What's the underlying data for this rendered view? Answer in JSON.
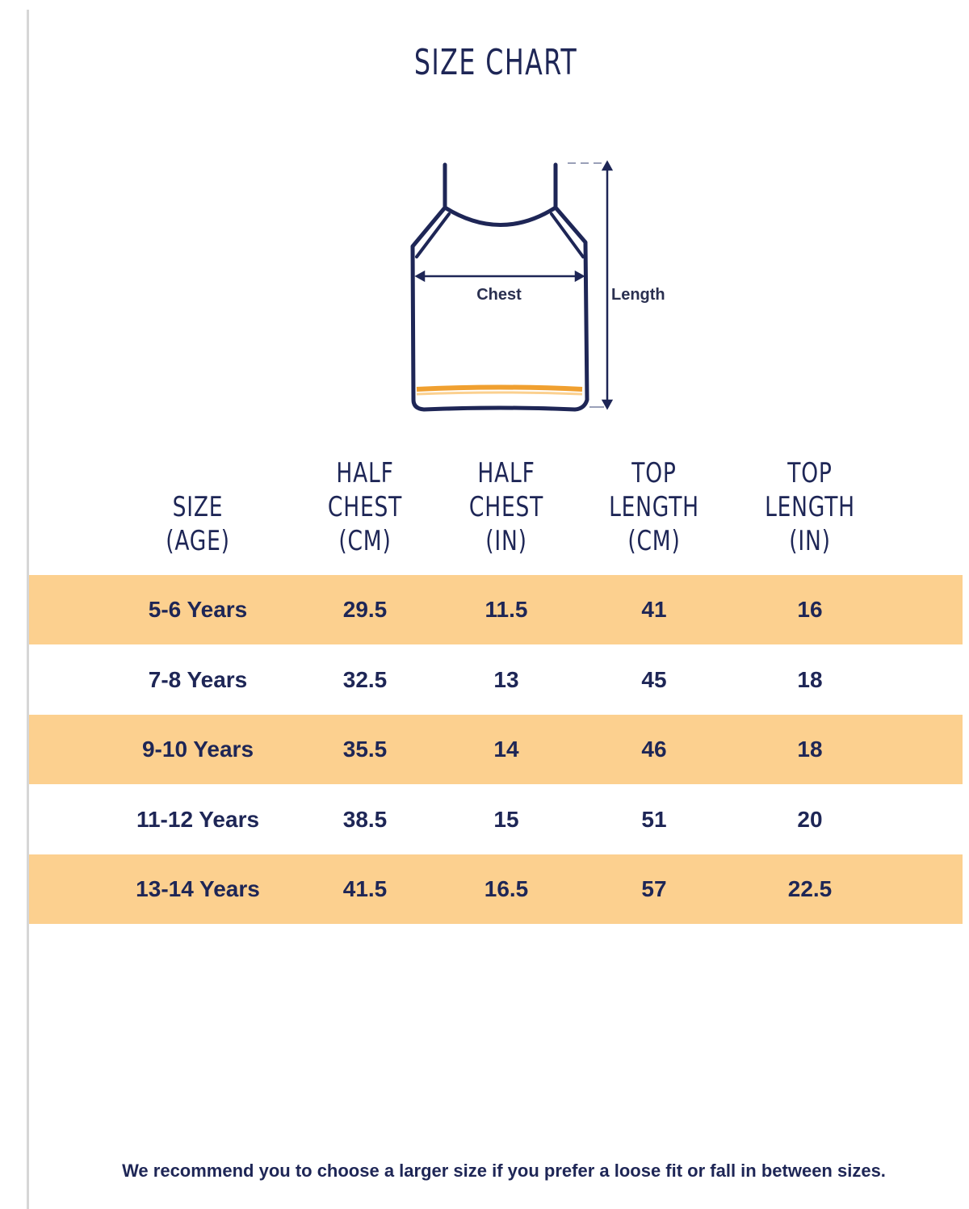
{
  "title": "SIZE CHART",
  "diagram": {
    "chest_label": "Chest",
    "length_label": "Length",
    "outline_color": "#1e2656",
    "stripe_color": "#f0a030"
  },
  "table": {
    "headers": [
      [
        "SIZE",
        "(AGE)"
      ],
      [
        "HALF",
        "CHEST",
        "(CM)"
      ],
      [
        "HALF",
        "CHEST",
        "(IN)"
      ],
      [
        "TOP",
        "LENGTH",
        "(CM)"
      ],
      [
        "TOP",
        "LENGTH",
        "(IN)"
      ]
    ],
    "rows": [
      [
        "5-6 Years",
        "29.5",
        "11.5",
        "41",
        "16"
      ],
      [
        "7-8 Years",
        "32.5",
        "13",
        "45",
        "18"
      ],
      [
        "9-10 Years",
        "35.5",
        "14",
        "46",
        "18"
      ],
      [
        "11-12 Years",
        "38.5",
        "15",
        "51",
        "20"
      ],
      [
        "13-14 Years",
        "41.5",
        "16.5",
        "57",
        "22.5"
      ]
    ],
    "row_shade_color": "#fcd08f"
  },
  "note": "We recommend you to choose a larger size if you prefer a loose fit or fall in between sizes."
}
